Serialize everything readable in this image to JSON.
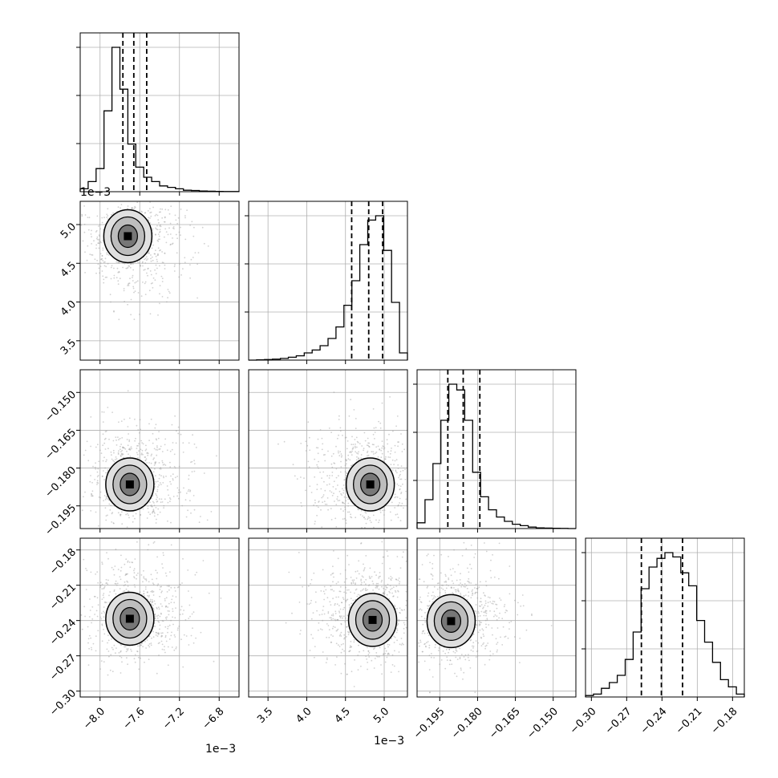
{
  "chart_data": {
    "type": "corner",
    "parameters": 4,
    "grid": true,
    "quantile_lines": "dashed",
    "axes": [
      {
        "range": [
          -8.2,
          -6.6
        ],
        "ticks": [
          -8.0,
          -7.6,
          -7.2,
          -6.8
        ],
        "tick_labels": [
          "−8.0",
          "−7.6",
          "−7.2",
          "−6.8"
        ],
        "offset_label": "1e−3",
        "quantiles": [
          -7.77,
          -7.66,
          -7.53
        ],
        "histogram": [
          0.02,
          0.07,
          0.16,
          0.56,
          1.0,
          0.71,
          0.33,
          0.17,
          0.1,
          0.07,
          0.04,
          0.03,
          0.02,
          0.01,
          0.008,
          0.005,
          0.003,
          0.002,
          0.001,
          0.001
        ]
      },
      {
        "range": [
          3.25,
          5.3
        ],
        "ticks": [
          3.5,
          4.0,
          4.5,
          5.0
        ],
        "tick_labels": [
          "3.5",
          "4.0",
          "4.5",
          "5.0"
        ],
        "offset_label": "1e−3",
        "quantiles": [
          4.58,
          4.8,
          4.98
        ],
        "histogram": [
          0.0,
          0.002,
          0.004,
          0.007,
          0.012,
          0.02,
          0.03,
          0.05,
          0.07,
          0.1,
          0.15,
          0.23,
          0.38,
          0.55,
          0.8,
          0.97,
          1.0,
          0.76,
          0.4,
          0.05
        ]
      },
      {
        "range": [
          -0.204,
          -0.141
        ],
        "ticks": [
          -0.195,
          -0.18,
          -0.165,
          -0.15
        ],
        "tick_labels": [
          "−0.195",
          "−0.180",
          "−0.165",
          "−0.150"
        ],
        "quantiles": [
          -0.1918,
          -0.1857,
          -0.1791
        ],
        "histogram": [
          0.04,
          0.2,
          0.45,
          0.75,
          1.0,
          0.96,
          0.75,
          0.39,
          0.22,
          0.13,
          0.08,
          0.05,
          0.03,
          0.02,
          0.01,
          0.005,
          0.003,
          0.002,
          0.001,
          0.0
        ]
      },
      {
        "range": [
          -0.305,
          -0.17
        ],
        "ticks": [
          -0.3,
          -0.27,
          -0.24,
          -0.21,
          -0.18
        ],
        "tick_labels": [
          "−0.30",
          "−0.27",
          "−0.24",
          "−0.21",
          "−0.18"
        ],
        "quantiles": [
          -0.2575,
          -0.2405,
          -0.2225
        ],
        "histogram": [
          0.01,
          0.02,
          0.06,
          0.1,
          0.15,
          0.26,
          0.45,
          0.75,
          0.9,
          0.96,
          1.0,
          0.97,
          0.86,
          0.77,
          0.53,
          0.38,
          0.24,
          0.12,
          0.07,
          0.02
        ]
      }
    ],
    "joint_modes": [
      {
        "row": 1,
        "col": 0,
        "center": [
          -7.72,
          4.85
        ]
      },
      {
        "row": 2,
        "col": 0,
        "center": [
          -7.7,
          -0.1865
        ]
      },
      {
        "row": 2,
        "col": 1,
        "center": [
          4.82,
          -0.1865
        ]
      },
      {
        "row": 3,
        "col": 0,
        "center": [
          -7.7,
          -0.2385
        ]
      },
      {
        "row": 3,
        "col": 1,
        "center": [
          4.85,
          -0.2395
        ]
      },
      {
        "row": 3,
        "col": 2,
        "center": [
          -0.1905,
          -0.2405
        ]
      }
    ]
  }
}
